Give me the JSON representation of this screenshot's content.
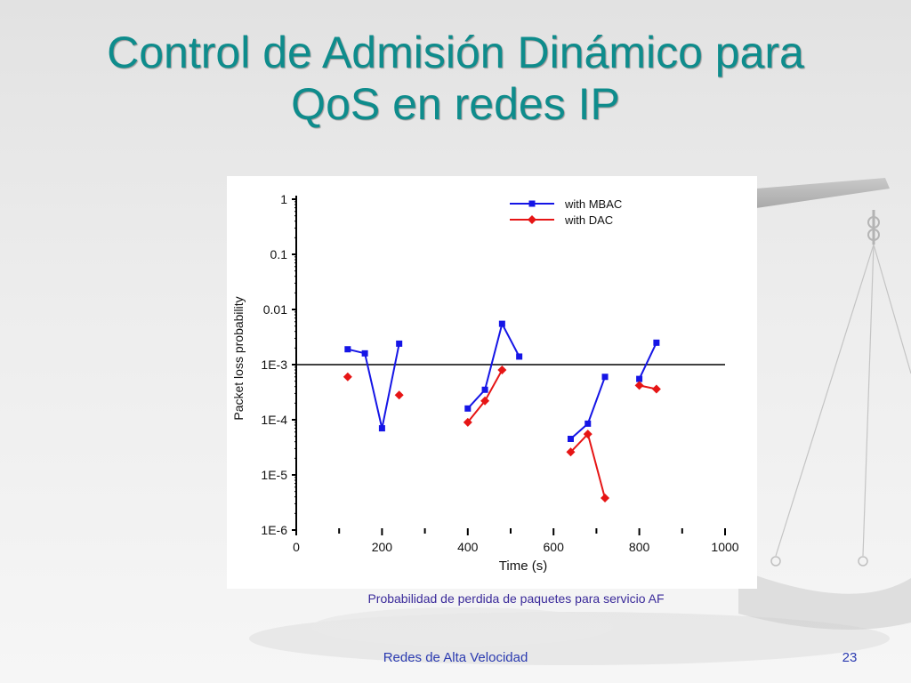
{
  "slide": {
    "title_line1": "Control de Admisión Dinámico para",
    "title_line2": "QoS en redes IP",
    "caption": "Probabilidad de perdida de paquetes para servicio AF",
    "footer_left": "Redes de Alta Velocidad",
    "page_number": "23"
  },
  "colors": {
    "title": "#0e8c8c",
    "mbac": "#1515e6",
    "dac": "#e61515",
    "footer": "#2a3ab0"
  },
  "chart_data": {
    "type": "line",
    "xlabel": "Time (s)",
    "ylabel": "Packet loss probability",
    "xlim": [
      0,
      1000
    ],
    "ylim": [
      1e-06,
      1
    ],
    "y_scale": "log",
    "x_ticks": [
      0,
      200,
      400,
      600,
      800,
      1000
    ],
    "x_tick_labels": [
      "0",
      "200",
      "400",
      "600",
      "800",
      "1000"
    ],
    "y_ticks": [
      1e-06,
      1e-05,
      0.0001,
      0.001,
      0.01,
      0.1,
      1
    ],
    "y_tick_labels": [
      "1E-6",
      "1E-5",
      "1E-4",
      "1E-3",
      "0.01",
      "0.1",
      "1"
    ],
    "threshold": 0.001,
    "legend_position": "top-right",
    "grid": false,
    "series": [
      {
        "name": "with MBAC",
        "color": "#1515e6",
        "marker": "square",
        "segments": [
          [
            [
              120,
              0.0019
            ],
            [
              160,
              0.0016
            ],
            [
              200,
              7e-05
            ],
            [
              240,
              0.0024
            ]
          ],
          [
            [
              400,
              0.00016
            ],
            [
              440,
              0.00035
            ],
            [
              480,
              0.0055
            ],
            [
              520,
              0.0014
            ]
          ],
          [
            [
              640,
              4.5e-05
            ],
            [
              680,
              8.5e-05
            ],
            [
              720,
              0.0006
            ]
          ],
          [
            [
              800,
              0.00055
            ],
            [
              840,
              0.0025
            ]
          ]
        ]
      },
      {
        "name": "with DAC",
        "color": "#e61515",
        "marker": "diamond",
        "segments": [
          [
            [
              120,
              0.0006
            ]
          ],
          [
            [
              240,
              0.00028
            ]
          ],
          [
            [
              400,
              9e-05
            ],
            [
              440,
              0.00022
            ],
            [
              480,
              0.0008
            ]
          ],
          [
            [
              640,
              2.6e-05
            ],
            [
              680,
              5.5e-05
            ],
            [
              720,
              3.8e-06
            ]
          ],
          [
            [
              800,
              0.00042
            ],
            [
              840,
              0.00036
            ]
          ]
        ]
      }
    ]
  }
}
